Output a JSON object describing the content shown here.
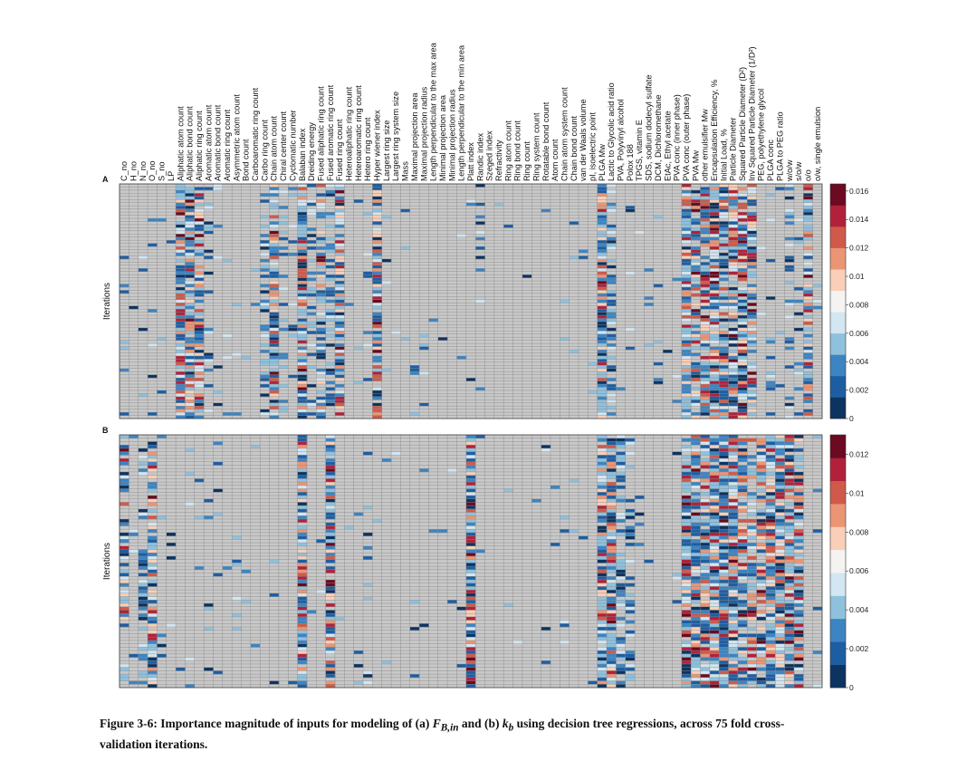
{
  "chart_data": [
    {
      "type": "heatmap",
      "panel_label": "A",
      "ylabel": "Iterations",
      "rows": 75,
      "columns": [
        "C_no",
        "H_no",
        "N_no",
        "O_no",
        "S_no",
        "LP",
        "Aliphatic atom count",
        "Aliphatic bond count",
        "Aliphatic ring count",
        "Aromatic atom count",
        "Aromatic bond count",
        "Aromatic ring count",
        "Asymmetric atom count",
        "Bond count",
        "Carboaromatic ring count",
        "Carbo ring count",
        "Chain atom count",
        "Chiral center count",
        "Cyclomatic number",
        "Balaban index",
        "Dreiding energy",
        "Fused aliphatic ring count",
        "Fused aromatic ring count",
        "Fused ring count",
        "Heteroaliphatic ring count",
        "Heteroaromatic ring count",
        "Hetero ring count",
        "Hyper wiener index",
        "Largest ring size",
        "Largest ring system size",
        "Mass",
        "Maximal projection area",
        "Maximal projection radius",
        "Length perpendicular to the max area",
        "Minimal projection area",
        "Minimal projection radius",
        "Length perpendicular to the min area",
        "Platt index",
        "Randic index",
        "Szeged index",
        "Refractivity",
        "Ring atom count",
        "Ring bond count",
        "Ring count",
        "Ring system count",
        "Rotatable bond count",
        "Atom count",
        "Chain atom system count",
        "Chain bond count",
        "van der Waals volume",
        "pI, isoelectric point",
        "PLGA Mw",
        "Lactic to Glycolic acid ratio",
        "PVA, Polyvinyl alcohol",
        "Polox 188",
        "TPGS, vitamin E",
        "SDS, sodium dodecyl sulfate",
        "DCM, Dichloromethane",
        "EtAc, Ethyl acetate",
        "PVA conc (inner phase)",
        "PVA conc (outer phase)",
        "PVA Mw",
        "other emulsifier Mw",
        "Encapsulation Efficiency, %",
        "Initial Load, %",
        "Particle Diameter",
        "Squared Particle Diameter (D²)",
        "Inv Squared Particle Diameter (1/D²)",
        "PEG, polyethylene glycol",
        "PLGA conc",
        "PLGA to PEG ratio",
        "w/o/w",
        "s/o/w",
        "o/o",
        "o/w, single emulsion"
      ],
      "colorbar_ticks": [
        "0",
        "0.002",
        "0.004",
        "0.006",
        "0.008",
        "0.01",
        "0.012",
        "0.014",
        "0.016"
      ],
      "vmin": 0,
      "vmax": 0.0165,
      "column_profile": [
        0.05,
        0.02,
        0.03,
        0.06,
        0.03,
        0.01,
        0.95,
        0.85,
        0.7,
        0.2,
        0.05,
        0.02,
        0.04,
        0.01,
        0.02,
        0.4,
        0.8,
        0.35,
        0.1,
        0.95,
        0.3,
        0.65,
        0.5,
        0.9,
        0.03,
        0.03,
        0.1,
        0.9,
        0.05,
        0.03,
        0.05,
        0.03,
        0.08,
        0.02,
        0.02,
        0.02,
        0.05,
        0.03,
        0.12,
        0.02,
        0.02,
        0.01,
        0.02,
        0.02,
        0.02,
        0.02,
        0.02,
        0.02,
        0.02,
        0.02,
        0.05,
        1.0,
        0.5,
        0.05,
        0.05,
        0.03,
        0.05,
        0.05,
        0.02,
        0.05,
        0.92,
        0.6,
        0.8,
        0.95,
        0.8,
        0.85,
        0.85,
        0.7,
        0.05,
        0.15,
        0.1,
        0.3,
        0.2,
        0.7,
        0.05
      ]
    },
    {
      "type": "heatmap",
      "panel_label": "B",
      "ylabel": "Iterations",
      "rows": 75,
      "columns": [
        "C_no",
        "H_no",
        "N_no",
        "O_no",
        "S_no",
        "LP",
        "Aliphatic atom count",
        "Aliphatic bond count",
        "Aliphatic ring count",
        "Aromatic atom count",
        "Aromatic bond count",
        "Aromatic ring count",
        "Asymmetric atom count",
        "Bond count",
        "Carboaromatic ring count",
        "Carbo ring count",
        "Chain atom count",
        "Chiral center count",
        "Cyclomatic number",
        "Balaban index",
        "Dreiding energy",
        "Fused aliphatic ring count",
        "Fused aromatic ring count",
        "Fused ring count",
        "Heteroaliphatic ring count",
        "Heteroaromatic ring count",
        "Hetero ring count",
        "Hyper wiener index",
        "Largest ring size",
        "Largest ring system size",
        "Mass",
        "Maximal projection area",
        "Maximal projection radius",
        "Length perpendicular to the max area",
        "Minimal projection area",
        "Minimal projection radius",
        "Length perpendicular to the min area",
        "Platt index",
        "Randic index",
        "Szeged index",
        "Refractivity",
        "Ring atom count",
        "Ring bond count",
        "Ring count",
        "Ring system count",
        "Rotatable bond count",
        "Atom count",
        "Chain atom system count",
        "Chain bond count",
        "van der Waals volume",
        "pI, isoelectric point",
        "PLGA Mw",
        "Lactic to Glycolic acid ratio",
        "PVA, Polyvinyl alcohol",
        "Polox 188",
        "TPGS, vitamin E",
        "SDS, sodium dodecyl sulfate",
        "DCM, Dichloromethane",
        "EtAc, Ethyl acetate",
        "PVA conc (inner phase)",
        "PVA conc (outer phase)",
        "PVA Mw",
        "other emulsifier Mw",
        "Encapsulation Efficiency, %",
        "Initial Load, %",
        "Particle Diameter",
        "Squared Particle Diameter (D²)",
        "Inv Squared Particle Diameter (1/D²)",
        "PEG, polyethylene glycol",
        "PLGA conc",
        "PLGA to PEG ratio",
        "w/o/w",
        "s/o/w",
        "o/o",
        "o/w, single emulsion"
      ],
      "colorbar_ticks": [
        "0",
        "0.002",
        "0.004",
        "0.006",
        "0.008",
        "0.01",
        "0.012"
      ],
      "vmin": 0,
      "vmax": 0.013,
      "column_profile": [
        0.6,
        0.05,
        0.4,
        0.85,
        0.05,
        0.02,
        0.05,
        0.1,
        0.05,
        0.05,
        0.08,
        0.02,
        0.05,
        0.02,
        0.05,
        0.02,
        0.05,
        0.02,
        0.02,
        0.95,
        0.02,
        0.05,
        0.9,
        0.02,
        0.02,
        0.02,
        0.1,
        0.02,
        0.02,
        0.02,
        0.02,
        0.02,
        0.02,
        0.02,
        0.02,
        0.02,
        0.02,
        1.0,
        0.02,
        0.02,
        0.02,
        0.02,
        0.02,
        0.02,
        0.02,
        0.03,
        0.02,
        0.02,
        0.02,
        0.02,
        0.02,
        0.95,
        0.95,
        0.5,
        0.45,
        0.05,
        0.02,
        0.02,
        0.02,
        0.05,
        0.9,
        0.9,
        0.85,
        0.95,
        1.0,
        0.95,
        0.7,
        0.6,
        0.7,
        0.9,
        0.95,
        0.85,
        0.8,
        0.05,
        0.05
      ]
    }
  ],
  "caption": {
    "prefix": "Figure 3-6: Importance magnitude of inputs for modeling of (a) ",
    "var1": "F",
    "var1_sub": "B,in",
    "middle": " and (b) ",
    "var2": "k",
    "var2_sub": "b",
    "suffix": " using decision tree regressions, across 75 fold cross-validation iterations."
  },
  "colors": {
    "background_cell": "#c8c8c8",
    "grid": "#8c8c8c",
    "scale_low": "#0d3360",
    "scale_high": "#6b0a20"
  }
}
